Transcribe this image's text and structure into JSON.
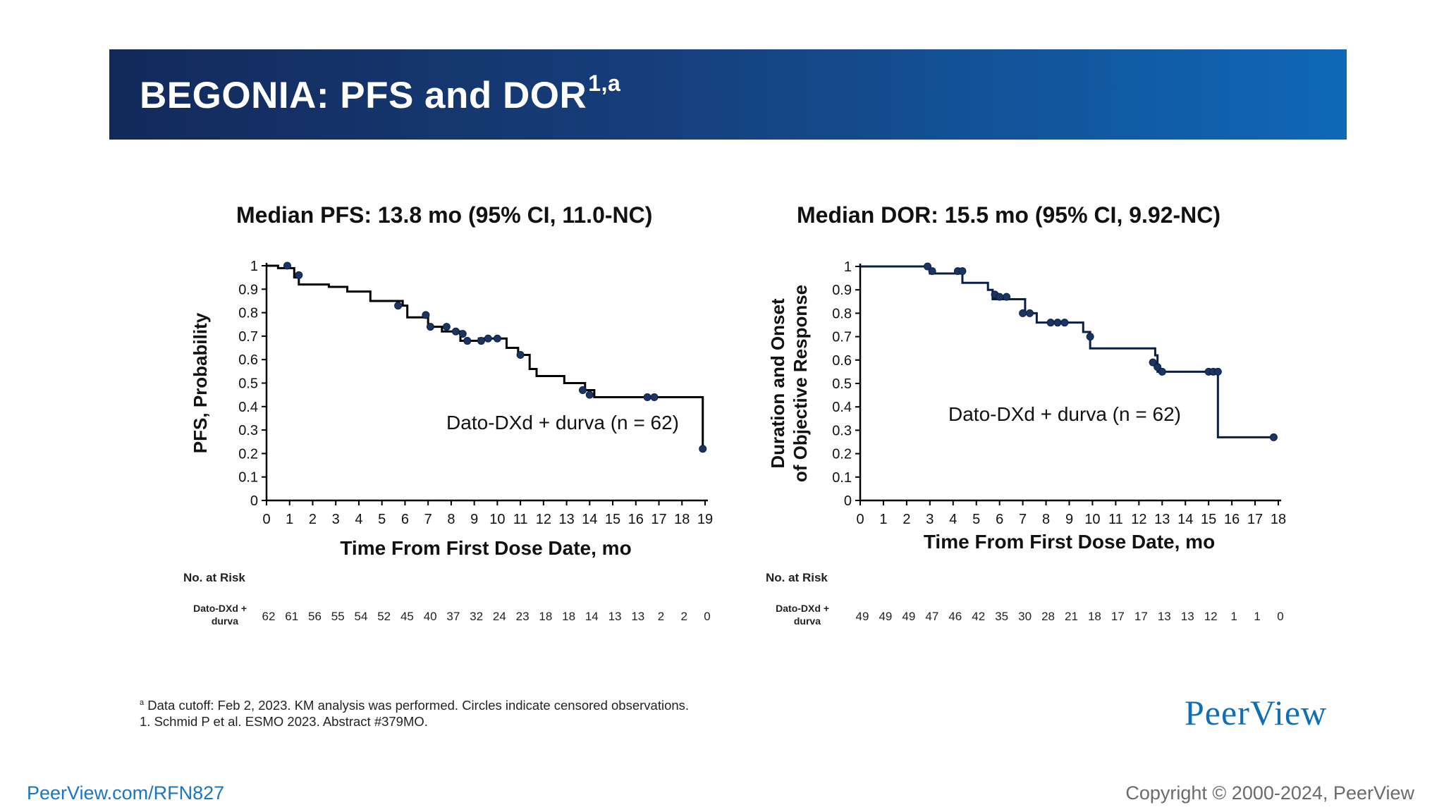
{
  "header": {
    "title": "BEGONIA: PFS and DOR",
    "title_sup": "1,a",
    "banner_colors": [
      "#13295a",
      "#0f68b8"
    ]
  },
  "chart_data": [
    {
      "type": "line",
      "subtype": "kaplan-meier",
      "title": "Median PFS: 13.8 mo (95% CI, 11.0-NC)",
      "xlabel": "Time From First Dose Date, mo",
      "ylabel": "PFS, Probability",
      "xlim": [
        0,
        19
      ],
      "ylim": [
        0,
        1
      ],
      "xticks": [
        "0",
        "1",
        "2",
        "3",
        "4",
        "5",
        "6",
        "7",
        "8",
        "9",
        "10",
        "11",
        "12",
        "13",
        "14",
        "15",
        "16",
        "17",
        "18",
        "19"
      ],
      "yticks": [
        "0",
        "0.1",
        "0.2",
        "0.3",
        "0.4",
        "0.5",
        "0.6",
        "0.7",
        "0.8",
        "0.9",
        "1"
      ],
      "series": [
        {
          "name": "Dato-DXd + durva (n = 62)",
          "color": "#000000",
          "step_x": [
            0,
            0.5,
            1.2,
            1.4,
            2.7,
            3.5,
            4.5,
            5.9,
            6.1,
            7.0,
            7.6,
            8.4,
            9.2,
            10.4,
            10.9,
            11.4,
            11.7,
            12.9,
            13.8,
            14.2,
            18.9
          ],
          "step_y": [
            1.0,
            0.99,
            0.95,
            0.92,
            0.91,
            0.89,
            0.85,
            0.83,
            0.78,
            0.74,
            0.72,
            0.68,
            0.69,
            0.65,
            0.62,
            0.56,
            0.53,
            0.5,
            0.47,
            0.44,
            0.22
          ],
          "censored": [
            [
              0.9,
              1.0
            ],
            [
              1.4,
              0.96
            ],
            [
              5.7,
              0.83
            ],
            [
              6.9,
              0.79
            ],
            [
              7.1,
              0.74
            ],
            [
              7.8,
              0.74
            ],
            [
              8.2,
              0.72
            ],
            [
              8.5,
              0.71
            ],
            [
              8.7,
              0.68
            ],
            [
              9.3,
              0.68
            ],
            [
              9.6,
              0.69
            ],
            [
              10.0,
              0.69
            ],
            [
              11.0,
              0.62
            ],
            [
              13.7,
              0.47
            ],
            [
              14.0,
              0.45
            ],
            [
              16.5,
              0.44
            ],
            [
              16.8,
              0.44
            ],
            [
              18.9,
              0.22
            ]
          ]
        }
      ]
    },
    {
      "type": "line",
      "subtype": "kaplan-meier",
      "title": "Median DOR: 15.5 mo (95% CI, 9.92-NC)",
      "xlabel": "Time From First Dose Date, mo",
      "ylabel_line1": "Duration and Onset",
      "ylabel_line2": "of Objective Response",
      "xlim": [
        0,
        18
      ],
      "ylim": [
        0,
        1
      ],
      "xticks": [
        "0",
        "1",
        "2",
        "3",
        "4",
        "5",
        "6",
        "7",
        "8",
        "9",
        "10",
        "11",
        "12",
        "13",
        "14",
        "15",
        "16",
        "17",
        "18"
      ],
      "yticks": [
        "0",
        "0.1",
        "0.2",
        "0.3",
        "0.4",
        "0.5",
        "0.6",
        "0.7",
        "0.8",
        "0.9",
        "1"
      ],
      "series": [
        {
          "name": "Dato-DXd + durva (n = 62)",
          "color": "#0a1f44",
          "step_x": [
            0,
            3.0,
            4.4,
            5.5,
            5.7,
            7.1,
            7.6,
            9.6,
            9.9,
            12.7,
            12.8,
            15.4,
            17.8
          ],
          "step_y": [
            1.0,
            0.97,
            0.93,
            0.9,
            0.86,
            0.8,
            0.76,
            0.72,
            0.65,
            0.62,
            0.55,
            0.27,
            0.27
          ],
          "censored": [
            [
              2.9,
              1.0
            ],
            [
              3.1,
              0.98
            ],
            [
              4.2,
              0.98
            ],
            [
              4.4,
              0.98
            ],
            [
              5.8,
              0.88
            ],
            [
              6.0,
              0.87
            ],
            [
              6.3,
              0.87
            ],
            [
              7.0,
              0.8
            ],
            [
              7.3,
              0.8
            ],
            [
              8.2,
              0.76
            ],
            [
              8.5,
              0.76
            ],
            [
              8.8,
              0.76
            ],
            [
              9.9,
              0.7
            ],
            [
              12.6,
              0.59
            ],
            [
              12.8,
              0.57
            ],
            [
              13.0,
              0.55
            ],
            [
              15.0,
              0.55
            ],
            [
              15.2,
              0.55
            ],
            [
              15.4,
              0.55
            ],
            [
              17.8,
              0.27
            ]
          ]
        }
      ]
    }
  ],
  "risk_tables": [
    {
      "header": "No. at Risk",
      "row_label_line1": "Dato-DXd +",
      "row_label_line2": "durva",
      "values": [
        "62",
        "61",
        "56",
        "55",
        "54",
        "52",
        "45",
        "40",
        "37",
        "32",
        "24",
        "23",
        "18",
        "18",
        "14",
        "13",
        "13",
        "2",
        "2",
        "0"
      ]
    },
    {
      "header": "No. at Risk",
      "row_label_line1": "Dato-DXd +",
      "row_label_line2": "durva",
      "values": [
        "49",
        "49",
        "49",
        "47",
        "46",
        "42",
        "35",
        "30",
        "28",
        "21",
        "18",
        "17",
        "17",
        "13",
        "13",
        "12",
        "1",
        "1",
        "0"
      ]
    }
  ],
  "footnotes": {
    "line1_sup": "a",
    "line1": " Data cutoff: Feb 2, 2023. KM analysis was performed. Circles indicate censored observations.",
    "line2": "1. Schmid P et al. ESMO 2023. Abstract #379MO."
  },
  "footer": {
    "logo": "PeerView",
    "url": "PeerView.com/RFN827",
    "copyright": "Copyright © 2000-2024, PeerView"
  }
}
